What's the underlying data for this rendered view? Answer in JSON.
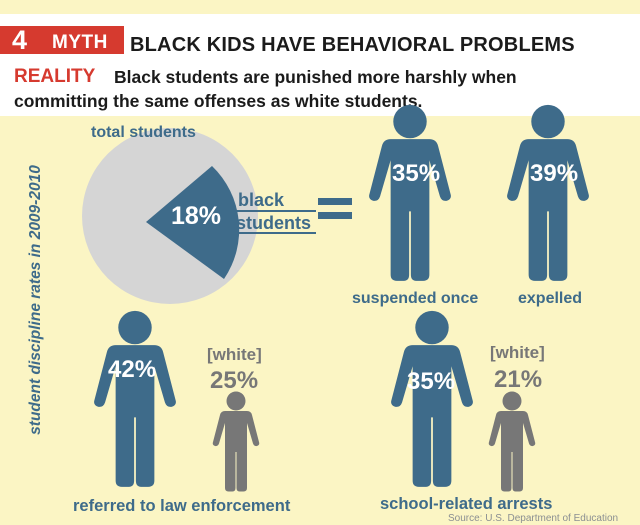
{
  "header": {
    "number": "4",
    "myth_label": "MYTH",
    "headline": "BLACK KIDS HAVE BEHAVIORAL PROBLEMS",
    "reality_label": "REALITY",
    "reality_line1": "Black students are punished more harshly when",
    "reality_line2": "committing the same offenses as white students."
  },
  "side_label": "student discipline rates in 2009-2010",
  "pie": {
    "total_label": "total students",
    "slice_value": "18%",
    "slice_label_line1": "black",
    "slice_label_line2": "students",
    "equals": "="
  },
  "figures": [
    {
      "value": "35%",
      "caption": "suspended once"
    },
    {
      "value": "39%",
      "caption": "expelled"
    },
    {
      "value": "42%",
      "white_label": "[white]",
      "white_value": "25%",
      "caption": "referred to law enforcement"
    },
    {
      "value": "35%",
      "white_label": "[white]",
      "white_value": "21%",
      "caption": "school-related arrests"
    }
  ],
  "source": "Source: U.S. Department of Education",
  "colors": {
    "accent_red": "#d63a2f",
    "figure_blue": "#3e6b8a",
    "figure_gray": "#777777",
    "background": "#fbf5c4",
    "pie_gray": "#d5d5d5"
  }
}
